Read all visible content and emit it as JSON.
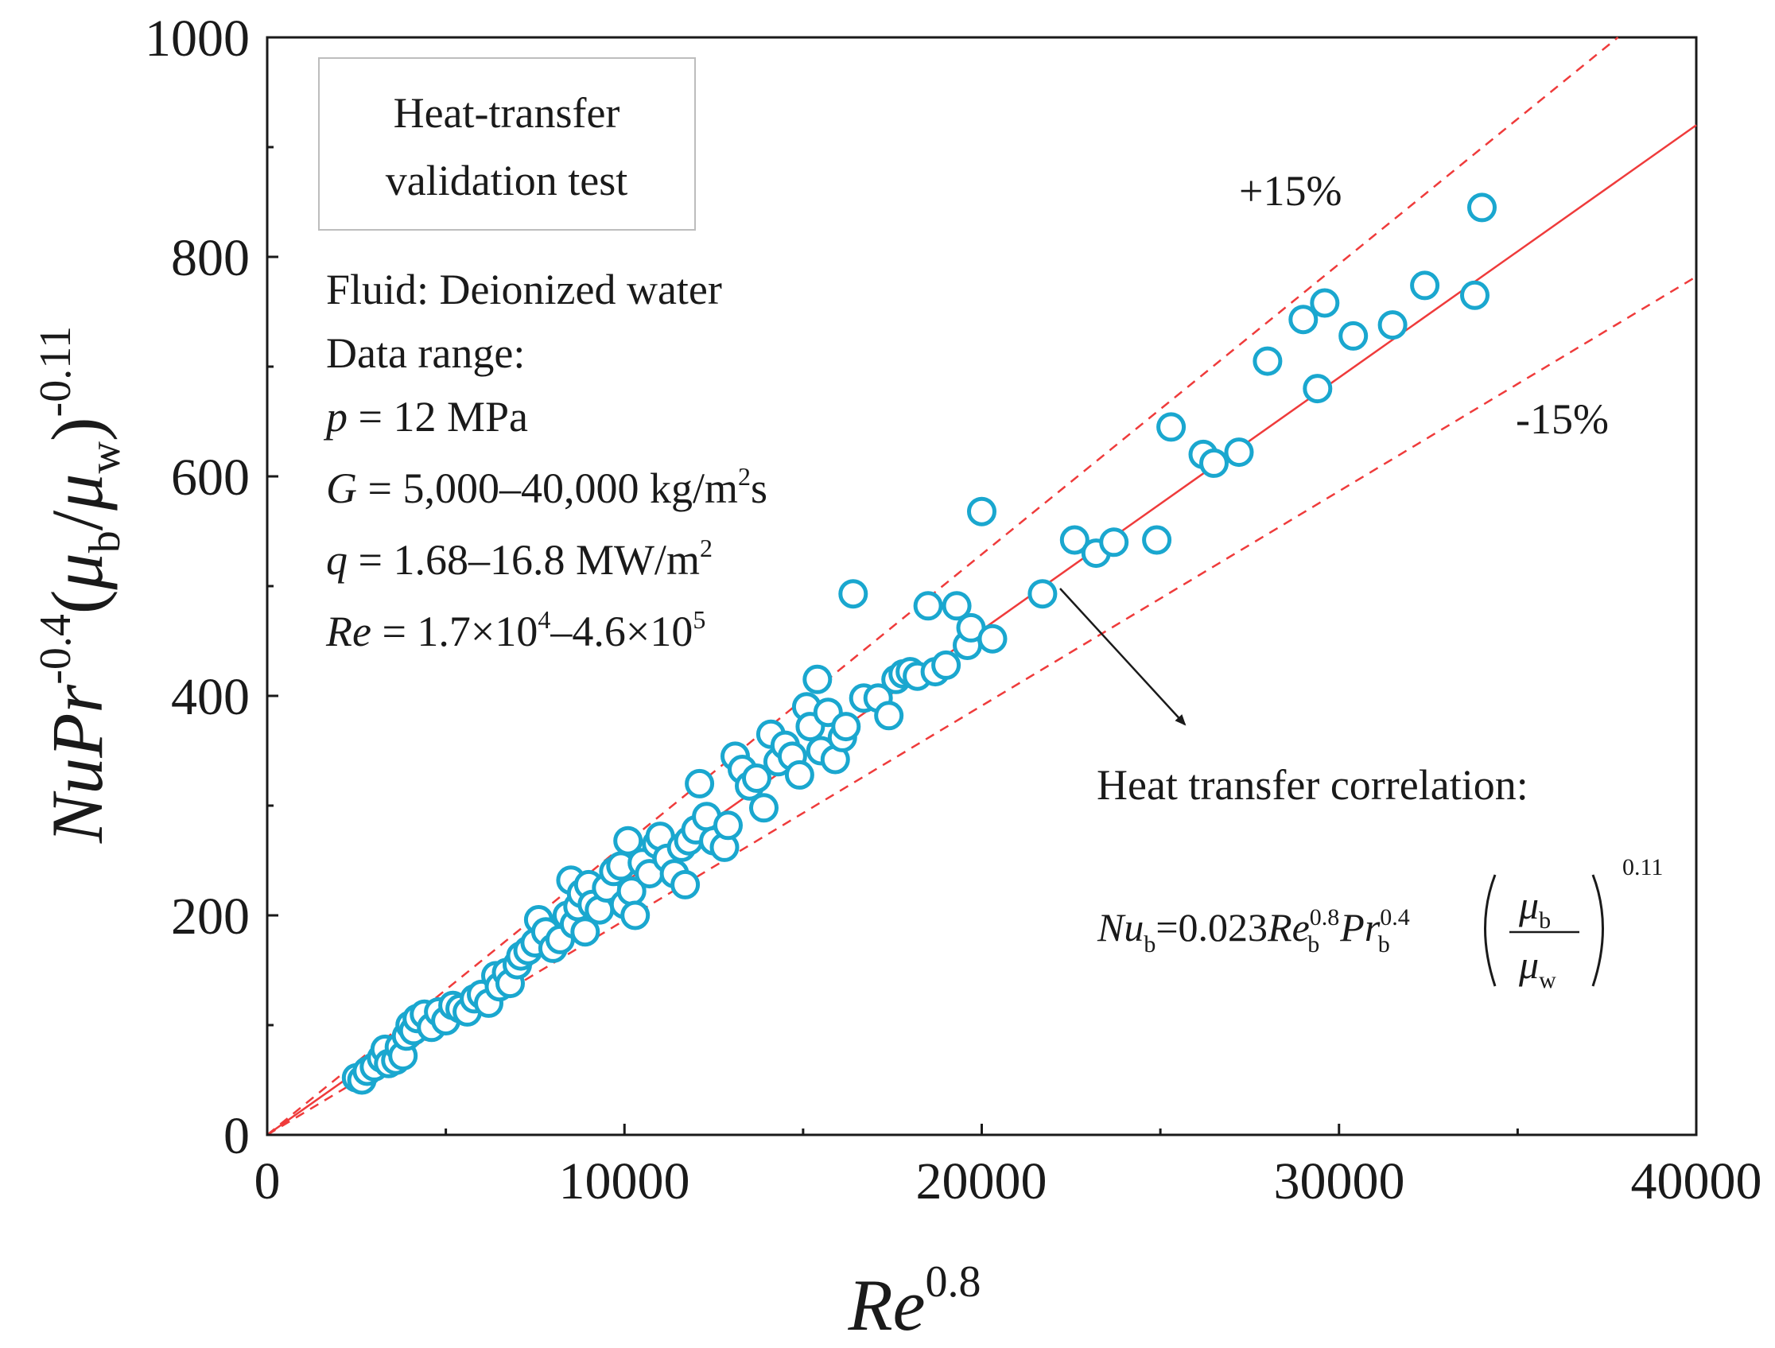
{
  "chart_data": {
    "type": "scatter",
    "xlim": [
      0,
      40000
    ],
    "ylim": [
      0,
      1000
    ],
    "x_ticks": [
      "0",
      "10000",
      "20000",
      "30000",
      "40000"
    ],
    "y_ticks": [
      "0",
      "200",
      "400",
      "600",
      "800",
      "1000"
    ],
    "xlabel": {
      "base": "Re",
      "sup": "0.8"
    },
    "ylabel": {
      "nu_pr": "NuPr",
      "sup1": "-0.4",
      "mu": "μ",
      "sub_b": "b",
      "sub_w": "w",
      "sup2": "-0.11"
    },
    "grid": false,
    "colors": {
      "markers": "#1aa7cf",
      "lines": "#ef3b3b",
      "axes": "#1a1a1a"
    },
    "lines": [
      {
        "name": "",
        "style": "solid",
        "slope": 0.023
      },
      {
        "name": "+15%",
        "style": "dashed",
        "slope": 0.02645
      },
      {
        "name": "-15%",
        "style": "dashed",
        "slope": 0.01955
      }
    ],
    "labels": {
      "plus": "+15%",
      "minus": "-15%"
    },
    "test_box": {
      "line1": "Heat-transfer",
      "line2": "validation test"
    },
    "info": {
      "fluid": "Fluid: Deionized water",
      "range": "Data range:",
      "p_var": "p",
      "p_val": " = 12 MPa",
      "g_var": "G",
      "g_val": " = 5,000–40,000 kg/m",
      "g_sup": "2",
      "g_tail": "s",
      "q_var": "q",
      "q_val": " = 1.68–16.8 MW/m",
      "q_sup": "2",
      "re_var": "Re",
      "re_val1": " = 1.7×10",
      "re_sup1": "4",
      "re_val2": "–4.6×10",
      "re_sup2": "5"
    },
    "correlation_title": "Heat transfer correlation:",
    "correlation": {
      "nu": "Nu",
      "b": "b",
      "eq": "=0.023",
      "re": "Re",
      "exp08": "0.8",
      "pr": "Pr",
      "exp04": "0.4",
      "mu": "μ",
      "w": "w",
      "exp011": "0.11"
    },
    "points": [
      [
        2500,
        52
      ],
      [
        2650,
        50
      ],
      [
        2800,
        58
      ],
      [
        3000,
        62
      ],
      [
        3200,
        70
      ],
      [
        3300,
        78
      ],
      [
        3400,
        65
      ],
      [
        3600,
        68
      ],
      [
        3700,
        80
      ],
      [
        3800,
        72
      ],
      [
        3900,
        90
      ],
      [
        4000,
        100
      ],
      [
        4100,
        95
      ],
      [
        4200,
        106
      ],
      [
        4400,
        110
      ],
      [
        4600,
        98
      ],
      [
        4800,
        112
      ],
      [
        5000,
        104
      ],
      [
        5200,
        118
      ],
      [
        5400,
        115
      ],
      [
        5600,
        112
      ],
      [
        5800,
        124
      ],
      [
        6000,
        128
      ],
      [
        6200,
        120
      ],
      [
        6400,
        145
      ],
      [
        6500,
        135
      ],
      [
        6700,
        148
      ],
      [
        6800,
        138
      ],
      [
        7000,
        155
      ],
      [
        7100,
        163
      ],
      [
        7300,
        168
      ],
      [
        7500,
        175
      ],
      [
        7600,
        196
      ],
      [
        7800,
        185
      ],
      [
        8000,
        170
      ],
      [
        8200,
        178
      ],
      [
        8400,
        200
      ],
      [
        8500,
        232
      ],
      [
        8600,
        192
      ],
      [
        8700,
        208
      ],
      [
        8800,
        220
      ],
      [
        8900,
        185
      ],
      [
        9000,
        228
      ],
      [
        9100,
        210
      ],
      [
        9300,
        205
      ],
      [
        9500,
        225
      ],
      [
        9700,
        240
      ],
      [
        9900,
        245
      ],
      [
        10000,
        210
      ],
      [
        10100,
        268
      ],
      [
        10200,
        222
      ],
      [
        10300,
        200
      ],
      [
        10500,
        248
      ],
      [
        10700,
        238
      ],
      [
        10900,
        265
      ],
      [
        11000,
        272
      ],
      [
        11200,
        252
      ],
      [
        11400,
        238
      ],
      [
        11600,
        262
      ],
      [
        11700,
        228
      ],
      [
        11800,
        268
      ],
      [
        12000,
        278
      ],
      [
        12100,
        320
      ],
      [
        12300,
        290
      ],
      [
        12500,
        268
      ],
      [
        12800,
        262
      ],
      [
        12900,
        282
      ],
      [
        13100,
        345
      ],
      [
        13300,
        333
      ],
      [
        13500,
        318
      ],
      [
        13700,
        325
      ],
      [
        13900,
        298
      ],
      [
        14100,
        365
      ],
      [
        14300,
        340
      ],
      [
        14500,
        355
      ],
      [
        14700,
        345
      ],
      [
        14900,
        328
      ],
      [
        15100,
        390
      ],
      [
        15200,
        372
      ],
      [
        15400,
        415
      ],
      [
        15500,
        350
      ],
      [
        15700,
        385
      ],
      [
        15900,
        342
      ],
      [
        16100,
        362
      ],
      [
        16200,
        372
      ],
      [
        16400,
        493
      ],
      [
        16700,
        398
      ],
      [
        17100,
        398
      ],
      [
        17400,
        382
      ],
      [
        17600,
        415
      ],
      [
        17800,
        420
      ],
      [
        18000,
        422
      ],
      [
        18200,
        418
      ],
      [
        18500,
        482
      ],
      [
        18700,
        422
      ],
      [
        19000,
        428
      ],
      [
        19300,
        482
      ],
      [
        19600,
        446
      ],
      [
        19700,
        462
      ],
      [
        20000,
        568
      ],
      [
        20300,
        452
      ],
      [
        21700,
        493
      ],
      [
        22600,
        542
      ],
      [
        23200,
        530
      ],
      [
        23700,
        540
      ],
      [
        24900,
        542
      ],
      [
        25300,
        645
      ],
      [
        26200,
        620
      ],
      [
        26500,
        612
      ],
      [
        27200,
        622
      ],
      [
        28000,
        705
      ],
      [
        29000,
        743
      ],
      [
        29400,
        680
      ],
      [
        29600,
        758
      ],
      [
        30400,
        728
      ],
      [
        31500,
        738
      ],
      [
        32400,
        774
      ],
      [
        33800,
        765
      ],
      [
        34000,
        845
      ]
    ]
  }
}
